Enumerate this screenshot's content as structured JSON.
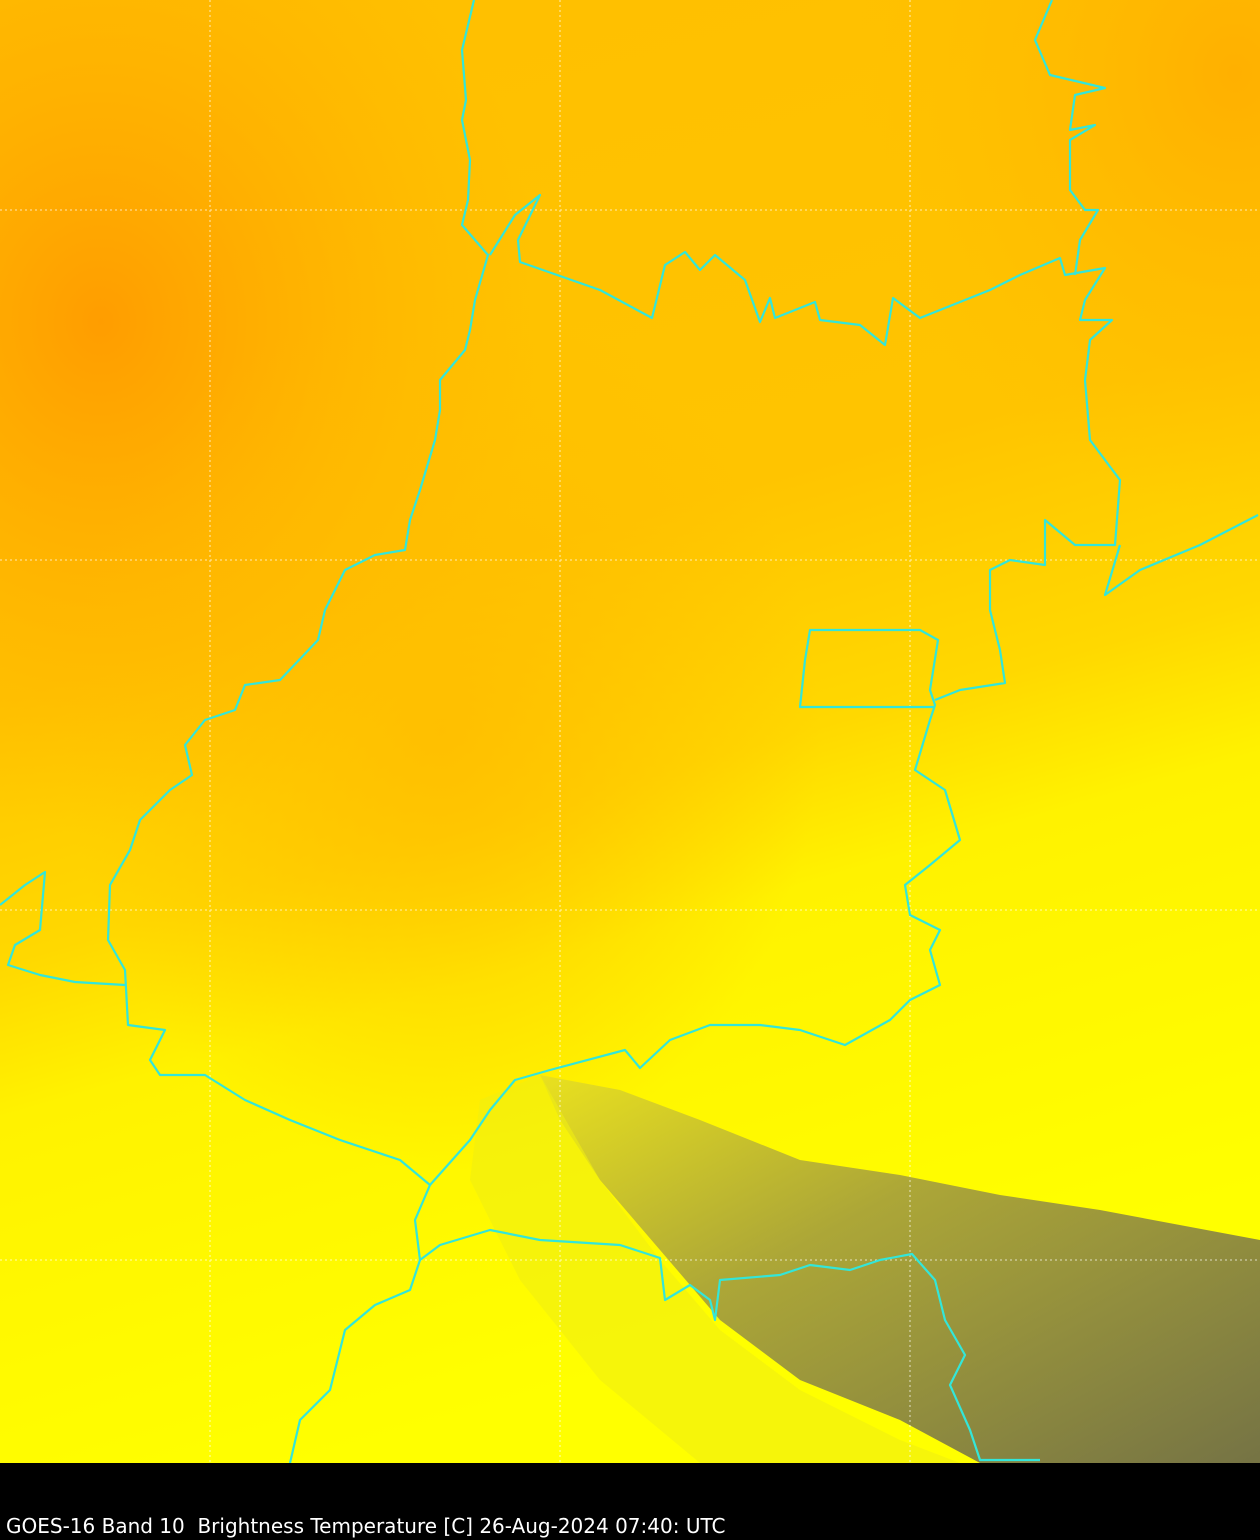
{
  "caption": "GOES-16 Band 10  Brightness Temperature [C] 26-Aug-2024 07:40: UTC",
  "colors": {
    "warm_orange": "#ffa000",
    "mid_orange": "#ffc400",
    "yellow": "#ffff00",
    "cold_olive": "#7d7a45",
    "border": "#33e6d9",
    "grid": "#ffffff",
    "caption_bar": "#000000"
  }
}
